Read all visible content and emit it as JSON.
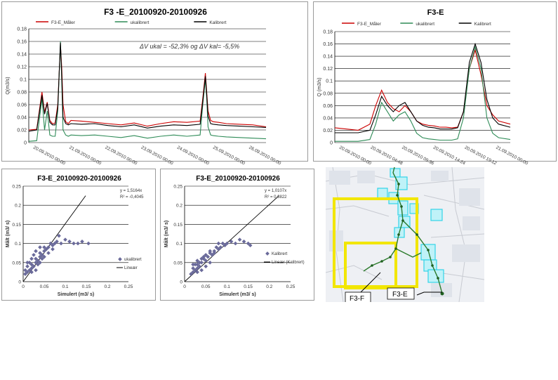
{
  "chart_data": [
    {
      "type": "line",
      "title": "F3 -E_20100920-20100926",
      "ylabel": "Q(m3/s)",
      "annotation": "ΔV ukal = -52,3% og ΔV kal= -5,5%",
      "ylim": [
        0,
        0.18
      ],
      "yticks": [
        "0",
        "0.02",
        "0.04",
        "0.06",
        "0.08",
        "0.1",
        "0.12",
        "0.14",
        "0.16",
        "0.18"
      ],
      "xtick_labels": [
        "20.09.2010 00:00",
        "21.09.2010 00:00",
        "22.09.2010 00:00",
        "23.09.2010 00:00",
        "24.09.2010 00:00",
        "25.09.2010 00:00",
        "26.09.2010 00:00"
      ],
      "legend_position": "top",
      "x": [
        0,
        0.3,
        0.5,
        0.6,
        0.7,
        0.8,
        0.9,
        1.0,
        1.1,
        1.2,
        1.25,
        1.3,
        1.4,
        1.5,
        1.6,
        2.0,
        2.5,
        3.0,
        3.5,
        4.0,
        4.5,
        5.0,
        5.5,
        6.0,
        6.5,
        6.6,
        6.7,
        6.75,
        6.8,
        6.9,
        7.0,
        7.2,
        7.5,
        8.0,
        8.5,
        9.0
      ],
      "series": [
        {
          "name": "F3-E_Måler",
          "color": "#cc0000",
          "values": [
            0.02,
            0.021,
            0.08,
            0.048,
            0.064,
            0.035,
            0.03,
            0.031,
            0.06,
            0.155,
            0.12,
            0.06,
            0.033,
            0.03,
            0.035,
            0.034,
            0.032,
            0.03,
            0.028,
            0.031,
            0.026,
            0.03,
            0.033,
            0.032,
            0.034,
            0.07,
            0.11,
            0.08,
            0.05,
            0.035,
            0.033,
            0.032,
            0.03,
            0.029,
            0.028,
            0.025
          ]
        },
        {
          "name": "ukalibrert",
          "color": "#2e8b57",
          "values": [
            0.002,
            0.003,
            0.07,
            0.02,
            0.05,
            0.012,
            0.01,
            0.01,
            0.05,
            0.16,
            0.1,
            0.02,
            0.012,
            0.01,
            0.012,
            0.011,
            0.012,
            0.01,
            0.008,
            0.011,
            0.007,
            0.01,
            0.012,
            0.01,
            0.012,
            0.06,
            0.1,
            0.07,
            0.025,
            0.012,
            0.011,
            0.01,
            0.009,
            0.008,
            0.007,
            0.006
          ]
        },
        {
          "name": "Kalibrert",
          "color": "#000000",
          "values": [
            0.018,
            0.02,
            0.075,
            0.045,
            0.062,
            0.032,
            0.028,
            0.028,
            0.055,
            0.158,
            0.11,
            0.04,
            0.03,
            0.028,
            0.03,
            0.029,
            0.03,
            0.027,
            0.025,
            0.028,
            0.023,
            0.026,
            0.028,
            0.027,
            0.029,
            0.065,
            0.105,
            0.076,
            0.042,
            0.03,
            0.029,
            0.028,
            0.027,
            0.026,
            0.025,
            0.024
          ]
        }
      ]
    },
    {
      "type": "line",
      "title": "F3-E",
      "ylabel": "Q (m3/s)",
      "ylim": [
        0,
        0.18
      ],
      "yticks": [
        "0",
        "0.02",
        "0.04",
        "0.06",
        "0.08",
        "0.1",
        "0.12",
        "0.14",
        "0.16",
        "0.18"
      ],
      "xtick_labels": [
        "20.09.2010 00:00",
        "20.09.2010 04:48",
        "20.09.2010 09:36",
        "20.09.2010 14:24",
        "20.09.2010 19:12",
        "21.09.2010 00:00"
      ],
      "legend_position": "top",
      "x": [
        0,
        0.4,
        0.8,
        1.2,
        1.4,
        1.6,
        1.8,
        2.0,
        2.2,
        2.4,
        2.6,
        2.8,
        3.0,
        3.2,
        3.4,
        3.6,
        3.8,
        4.0,
        4.2,
        4.4,
        4.6,
        4.8,
        5.0,
        5.2,
        5.4,
        5.6,
        6.0
      ],
      "series": [
        {
          "name": "F3-E_Måler",
          "color": "#cc0000",
          "values": [
            0.024,
            0.022,
            0.02,
            0.03,
            0.06,
            0.085,
            0.065,
            0.055,
            0.05,
            0.06,
            0.05,
            0.035,
            0.03,
            0.028,
            0.027,
            0.025,
            0.025,
            0.024,
            0.025,
            0.05,
            0.12,
            0.15,
            0.11,
            0.06,
            0.045,
            0.035,
            0.03
          ]
        },
        {
          "name": "ukalibrert",
          "color": "#2e8b57",
          "values": [
            0.002,
            0.002,
            0.002,
            0.005,
            0.03,
            0.065,
            0.05,
            0.035,
            0.045,
            0.05,
            0.035,
            0.015,
            0.008,
            0.006,
            0.005,
            0.004,
            0.004,
            0.004,
            0.006,
            0.04,
            0.12,
            0.155,
            0.12,
            0.04,
            0.015,
            0.008,
            0.005
          ]
        },
        {
          "name": "Kalibrert",
          "color": "#000000",
          "values": [
            0.016,
            0.016,
            0.016,
            0.02,
            0.045,
            0.075,
            0.06,
            0.05,
            0.06,
            0.065,
            0.05,
            0.035,
            0.028,
            0.025,
            0.024,
            0.022,
            0.022,
            0.022,
            0.024,
            0.05,
            0.13,
            0.16,
            0.13,
            0.07,
            0.04,
            0.03,
            0.025
          ]
        }
      ]
    },
    {
      "type": "scatter",
      "title": "F3-E_20100920-20100926",
      "xlabel": "Simulert (m3/ s)",
      "ylabel": "Målt (m3/ s)",
      "xlim": [
        0,
        0.25
      ],
      "ylim": [
        0,
        0.25
      ],
      "xticks": [
        "0",
        "0.05",
        "0.1",
        "0.15",
        "0.2",
        "0.25"
      ],
      "yticks": [
        "0",
        "0.05",
        "0.1",
        "0.15",
        "0.2",
        "0.25"
      ],
      "equation": "y = 1,5164x",
      "r2": "R² = -0,4045",
      "legend": [
        "ukalibrert",
        "Lineær"
      ],
      "marker_color": "#6a6a9a",
      "trend_slope": 1.5164,
      "points": [
        [
          0.01,
          0.025
        ],
        [
          0.015,
          0.03
        ],
        [
          0.02,
          0.035
        ],
        [
          0.02,
          0.045
        ],
        [
          0.025,
          0.04
        ],
        [
          0.03,
          0.05
        ],
        [
          0.03,
          0.06
        ],
        [
          0.035,
          0.055
        ],
        [
          0.04,
          0.065
        ],
        [
          0.04,
          0.075
        ],
        [
          0.045,
          0.07
        ],
        [
          0.05,
          0.08
        ],
        [
          0.05,
          0.09
        ],
        [
          0.055,
          0.085
        ],
        [
          0.06,
          0.09
        ],
        [
          0.065,
          0.1
        ],
        [
          0.07,
          0.095
        ],
        [
          0.075,
          0.1
        ],
        [
          0.08,
          0.105
        ],
        [
          0.085,
          0.12
        ],
        [
          0.09,
          0.1
        ],
        [
          0.1,
          0.11
        ],
        [
          0.11,
          0.105
        ],
        [
          0.12,
          0.1
        ],
        [
          0.13,
          0.1
        ],
        [
          0.14,
          0.105
        ],
        [
          0.155,
          0.1
        ],
        [
          0.005,
          0.02
        ],
        [
          0.01,
          0.04
        ],
        [
          0.015,
          0.05
        ],
        [
          0.02,
          0.06
        ],
        [
          0.025,
          0.07
        ],
        [
          0.03,
          0.03
        ],
        [
          0.035,
          0.045
        ],
        [
          0.04,
          0.05
        ],
        [
          0.045,
          0.06
        ],
        [
          0.05,
          0.065
        ],
        [
          0.06,
          0.075
        ],
        [
          0.07,
          0.085
        ],
        [
          0.005,
          0.03
        ],
        [
          0.01,
          0.05
        ],
        [
          0.02,
          0.025
        ],
        [
          0.03,
          0.08
        ],
        [
          0.04,
          0.09
        ]
      ]
    },
    {
      "type": "scatter",
      "title": "F3-E_20100920-20100926",
      "xlabel": "Simulert (m3/ s)",
      "ylabel": "Målt (m3/ s)",
      "xlim": [
        0,
        0.25
      ],
      "ylim": [
        0,
        0.25
      ],
      "xticks": [
        "0",
        "0.05",
        "0.1",
        "0.15",
        "0.2",
        "0.25"
      ],
      "yticks": [
        "0",
        "0.05",
        "0.1",
        "0.15",
        "0.2",
        "0.25"
      ],
      "equation": "y = 1,0107x",
      "r2": "R² = 0,6822",
      "legend": [
        "Kalibrert",
        "Lineær (Kalibrert)"
      ],
      "marker_color": "#6a6a9a",
      "trend_slope": 1.0107,
      "points": [
        [
          0.02,
          0.025
        ],
        [
          0.025,
          0.03
        ],
        [
          0.03,
          0.035
        ],
        [
          0.03,
          0.045
        ],
        [
          0.035,
          0.04
        ],
        [
          0.04,
          0.05
        ],
        [
          0.045,
          0.06
        ],
        [
          0.05,
          0.055
        ],
        [
          0.055,
          0.065
        ],
        [
          0.06,
          0.075
        ],
        [
          0.065,
          0.07
        ],
        [
          0.07,
          0.08
        ],
        [
          0.075,
          0.09
        ],
        [
          0.08,
          0.085
        ],
        [
          0.085,
          0.09
        ],
        [
          0.09,
          0.1
        ],
        [
          0.095,
          0.095
        ],
        [
          0.1,
          0.1
        ],
        [
          0.11,
          0.105
        ],
        [
          0.12,
          0.1
        ],
        [
          0.13,
          0.11
        ],
        [
          0.14,
          0.105
        ],
        [
          0.15,
          0.1
        ],
        [
          0.155,
          0.095
        ],
        [
          0.02,
          0.035
        ],
        [
          0.025,
          0.045
        ],
        [
          0.03,
          0.055
        ],
        [
          0.035,
          0.05
        ],
        [
          0.04,
          0.06
        ],
        [
          0.045,
          0.065
        ],
        [
          0.05,
          0.07
        ],
        [
          0.06,
          0.08
        ],
        [
          0.07,
          0.075
        ],
        [
          0.08,
          0.1
        ],
        [
          0.015,
          0.02
        ],
        [
          0.02,
          0.045
        ],
        [
          0.03,
          0.025
        ],
        [
          0.04,
          0.03
        ],
        [
          0.05,
          0.04
        ],
        [
          0.06,
          0.05
        ]
      ]
    }
  ],
  "map": {
    "labels": [
      "F3-F",
      "F3-E"
    ],
    "yellow": "#f2e600",
    "cyan": "#33d4e8",
    "line": "#2a7a2a"
  }
}
